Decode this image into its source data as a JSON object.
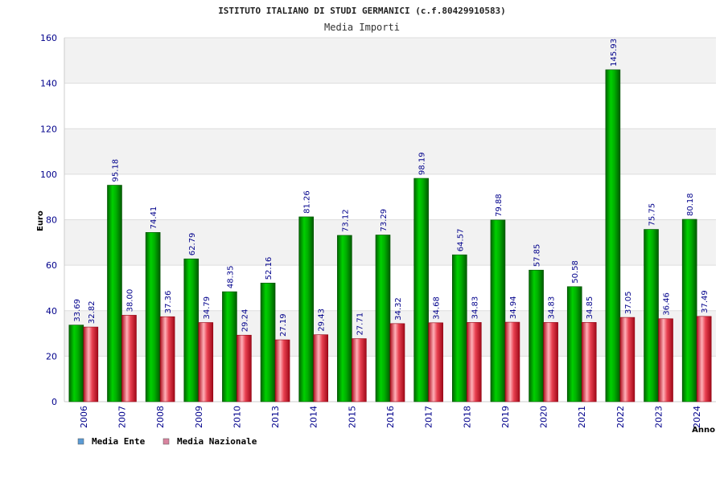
{
  "chart_data": {
    "type": "bar",
    "title": "ISTITUTO ITALIANO DI STUDI GERMANICI (c.f.80429910583)",
    "subtitle": "Media Importi",
    "xlabel": "Anno",
    "ylabel": "Euro",
    "ylim": [
      0,
      160
    ],
    "yticks": [
      0,
      20,
      40,
      60,
      80,
      100,
      120,
      140,
      160
    ],
    "grid": true,
    "legend_position": "bottom-left",
    "categories": [
      "2006",
      "2007",
      "2008",
      "2009",
      "2010",
      "2013",
      "2014",
      "2015",
      "2016",
      "2017",
      "2018",
      "2019",
      "2020",
      "2021",
      "2022",
      "2023",
      "2024"
    ],
    "series": [
      {
        "name": "Media Ente",
        "legend_color": "#5b9bd5",
        "bar_color": "#00a000",
        "values": [
          33.69,
          95.18,
          74.41,
          62.79,
          48.35,
          52.16,
          81.26,
          73.12,
          73.29,
          98.19,
          64.57,
          79.88,
          57.85,
          50.58,
          145.93,
          75.75,
          80.18
        ],
        "labels": [
          "33.69",
          "95.18",
          "74.41",
          "62.79",
          "48.35",
          "52.16",
          "81.26",
          "73.12",
          "73.29",
          "98.19",
          "64.57",
          "79.88",
          "57.85",
          "50.58",
          "145.93",
          "75.75",
          "80.18"
        ]
      },
      {
        "name": "Media Nazionale",
        "legend_color": "#d9849f",
        "bar_color": "#e0303a",
        "values": [
          32.82,
          38.0,
          37.36,
          34.79,
          29.24,
          27.19,
          29.43,
          27.71,
          34.32,
          34.68,
          34.83,
          34.94,
          34.83,
          34.85,
          37.05,
          36.46,
          37.49
        ],
        "labels": [
          "32.82",
          "38.00",
          "37.36",
          "34.79",
          "29.24",
          "27.19",
          "29.43",
          "27.71",
          "34.32",
          "34.68",
          "34.83",
          "34.94",
          "34.83",
          "34.85",
          "37.05",
          "36.46",
          "37.49"
        ]
      }
    ]
  }
}
